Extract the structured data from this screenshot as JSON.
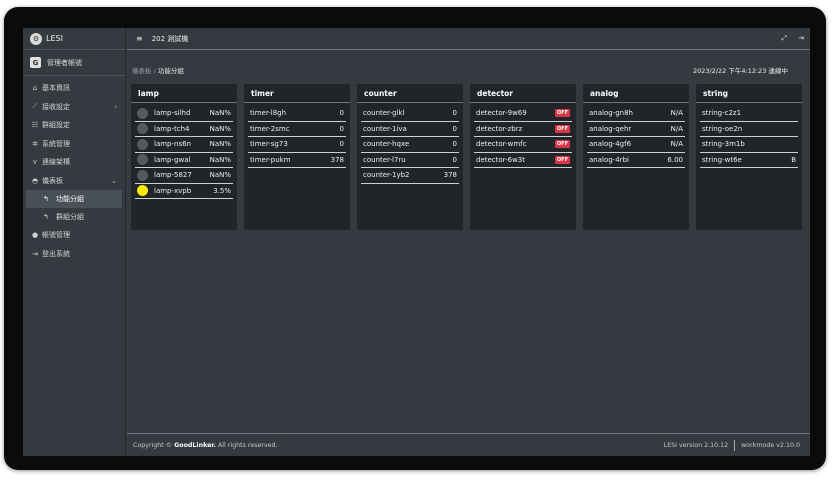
{
  "brand": {
    "name": "LESI",
    "logo_icon": "gear-logo-icon"
  },
  "user": {
    "name": "管理者帳號"
  },
  "sidebar": {
    "items": [
      {
        "label": "基本資訊",
        "icon": "home-icon"
      },
      {
        "label": "接收設定",
        "icon": "plug-icon",
        "caret": "‹"
      },
      {
        "label": "群組設定",
        "icon": "sitemap-icon"
      },
      {
        "label": "系統管理",
        "icon": "gear-icon"
      },
      {
        "label": "連線架構",
        "icon": "tree-icon"
      },
      {
        "label": "儀表板",
        "icon": "dashboard-icon",
        "caret": "⌄"
      }
    ],
    "subitems": [
      {
        "label": "功能分組",
        "icon": "arrow-icon",
        "active": true
      },
      {
        "label": "群組分組",
        "icon": "arrow-icon",
        "active": false
      }
    ],
    "bottom_items": [
      {
        "label": "帳號管理",
        "icon": "user-icon"
      },
      {
        "label": "登出系統",
        "icon": "logout-icon"
      }
    ]
  },
  "topbar": {
    "menu_icon": "≡",
    "title": "202 測試機"
  },
  "breadcrumb": {
    "parent": "儀表板",
    "separator": "/",
    "current": "功能分組"
  },
  "datetime": "2023/2/22 下午4:12:23 連線中",
  "cards": [
    {
      "title": "lamp",
      "rows": [
        {
          "label": "lamp-silhd",
          "value": "NaN%",
          "lamp": "off"
        },
        {
          "label": "lamp-tch4",
          "value": "NaN%",
          "lamp": "off"
        },
        {
          "label": "lamp-ns6n",
          "value": "NaN%",
          "lamp": "off"
        },
        {
          "label": "lamp-gwal",
          "value": "NaN%",
          "lamp": "off"
        },
        {
          "label": "lamp-5827",
          "value": "NaN%",
          "lamp": "off"
        },
        {
          "label": "lamp-xvpb",
          "value": "3.5%",
          "lamp": "on"
        }
      ]
    },
    {
      "title": "timer",
      "rows": [
        {
          "label": "timer-l8gh",
          "value": "0"
        },
        {
          "label": "timer-2smc",
          "value": "0"
        },
        {
          "label": "timer-sg73",
          "value": "0"
        },
        {
          "label": "timer-pukm",
          "value": "378"
        }
      ]
    },
    {
      "title": "counter",
      "rows": [
        {
          "label": "counter-glkl",
          "value": "0"
        },
        {
          "label": "counter-1iva",
          "value": "0"
        },
        {
          "label": "counter-hqxe",
          "value": "0"
        },
        {
          "label": "counter-l7ru",
          "value": "0"
        },
        {
          "label": "counter-1yb2",
          "value": "378"
        }
      ]
    },
    {
      "title": "detector",
      "rows": [
        {
          "label": "detector-9w69",
          "badge": "OFF"
        },
        {
          "label": "detector-zbrz",
          "badge": "OFF"
        },
        {
          "label": "detector-wmfc",
          "badge": "OFF"
        },
        {
          "label": "detector-6w3t",
          "badge": "OFF"
        }
      ]
    },
    {
      "title": "analog",
      "rows": [
        {
          "label": "analog-gn8h",
          "value": "N/A"
        },
        {
          "label": "analog-qehr",
          "value": "N/A"
        },
        {
          "label": "analog-4gf6",
          "value": "N/A"
        },
        {
          "label": "analog-4rbi",
          "value": "6.00"
        }
      ]
    },
    {
      "title": "string",
      "rows": [
        {
          "label": "string-c2z1",
          "value": ""
        },
        {
          "label": "string-oe2n",
          "value": ""
        },
        {
          "label": "string-3m1b",
          "value": ""
        },
        {
          "label": "string-wt6e",
          "value": "B"
        }
      ]
    }
  ],
  "footer": {
    "copyright_prefix": "Copyright ©",
    "company": "GoodLinker.",
    "copyright_suffix": "All rights reserved.",
    "version": "LESI version 2.10.12",
    "workmode": "workmode v2.10.0"
  },
  "colors": {
    "lamp_on": "#ffeb00",
    "lamp_off": "#555a5e",
    "badge_off": "#dc3545",
    "card_bg": "#212529",
    "page_bg": "#343a40"
  }
}
